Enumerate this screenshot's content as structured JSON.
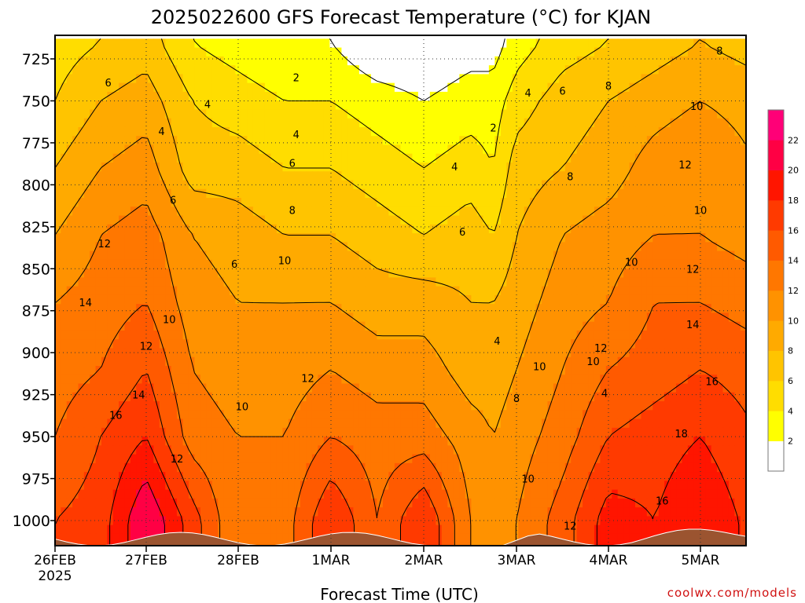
{
  "chart_data": {
    "type": "heatmap",
    "title": "2025022600 GFS Forecast Temperature (°C) for KJAN",
    "xlabel": "Forecast Time (UTC)",
    "ylabel": "",
    "credit": "coolwx.com/models",
    "x_ticks": [
      {
        "label": "26FEB",
        "sub": "2025",
        "t": 0
      },
      {
        "label": "27FEB",
        "sub": "",
        "t": 24
      },
      {
        "label": "28FEB",
        "sub": "",
        "t": 48
      },
      {
        "label": "1MAR",
        "sub": "",
        "t": 72
      },
      {
        "label": "2MAR",
        "sub": "",
        "t": 96
      },
      {
        "label": "3MAR",
        "sub": "",
        "t": 120
      },
      {
        "label": "4MAR",
        "sub": "",
        "t": 144
      },
      {
        "label": "5MAR",
        "sub": "",
        "t": 168
      }
    ],
    "xlim": [
      0,
      183
    ],
    "y_ticks": [
      725,
      750,
      775,
      800,
      825,
      850,
      875,
      900,
      925,
      950,
      975,
      1000
    ],
    "ylim_hpa": [
      713,
      1029
    ],
    "y_reversed": true,
    "colorbar": {
      "bins": [
        {
          "min": 0,
          "max": 2,
          "color": "#ffffff"
        },
        {
          "min": 2,
          "max": 4,
          "color": "#ffff00"
        },
        {
          "min": 4,
          "max": 6,
          "color": "#ffdd00"
        },
        {
          "min": 6,
          "max": 8,
          "color": "#ffc400"
        },
        {
          "min": 8,
          "max": 10,
          "color": "#ffaa00"
        },
        {
          "min": 10,
          "max": 12,
          "color": "#ff9200"
        },
        {
          "min": 12,
          "max": 14,
          "color": "#ff7700"
        },
        {
          "min": 14,
          "max": 16,
          "color": "#ff5a00"
        },
        {
          "min": 16,
          "max": 18,
          "color": "#ff3a00"
        },
        {
          "min": 18,
          "max": 20,
          "color": "#ff1500"
        },
        {
          "min": 20,
          "max": 22,
          "color": "#ff0044"
        },
        {
          "min": 22,
          "max": 24,
          "color": "#ff0077"
        }
      ],
      "tick_labels": [
        "2",
        "4",
        "6",
        "8",
        "10",
        "12",
        "14",
        "16",
        "18",
        "20",
        "22"
      ]
    },
    "surface_color": "#9b5430",
    "contour_interval": 2,
    "temperature_profiles": [
      {
        "t": 0,
        "p": [
          715,
          750,
          790,
          830,
          870,
          910,
          950,
          1000
        ],
        "T": [
          5,
          6,
          8,
          10,
          12,
          13,
          14,
          16
        ]
      },
      {
        "t": 12,
        "p": [
          715,
          750,
          790,
          830,
          870,
          910,
          950,
          1000
        ],
        "T": [
          6,
          8,
          10,
          12,
          13,
          14,
          16,
          17
        ]
      },
      {
        "t": 24,
        "p": [
          715,
          750,
          790,
          830,
          870,
          910,
          950,
          1000
        ],
        "T": [
          7,
          9,
          11,
          13,
          14,
          16,
          18,
          22
        ]
      },
      {
        "t": 36,
        "p": [
          715,
          750,
          790,
          830,
          870,
          910,
          950,
          1000
        ],
        "T": [
          4,
          6,
          7,
          10,
          11,
          12,
          13,
          17
        ]
      },
      {
        "t": 48,
        "p": [
          715,
          750,
          790,
          830,
          870,
          910,
          950,
          1000
        ],
        "T": [
          3,
          5,
          7,
          9,
          10,
          11,
          12,
          12
        ]
      },
      {
        "t": 60,
        "p": [
          715,
          750,
          790,
          830,
          870,
          910,
          950,
          1000
        ],
        "T": [
          2,
          4,
          6,
          8,
          10,
          11,
          12,
          13
        ]
      },
      {
        "t": 72,
        "p": [
          715,
          750,
          790,
          830,
          870,
          910,
          950,
          1000
        ],
        "T": [
          2,
          4,
          6,
          8,
          10,
          12,
          14,
          18
        ]
      },
      {
        "t": 84,
        "p": [
          715,
          750,
          790,
          830,
          870,
          910,
          950,
          1000
        ],
        "T": [
          0,
          3,
          5,
          7,
          9,
          11,
          13,
          14
        ]
      },
      {
        "t": 96,
        "p": [
          715,
          750,
          790,
          830,
          870,
          910,
          950,
          1000
        ],
        "T": [
          0,
          2,
          4,
          6,
          9,
          11,
          13,
          18
        ]
      },
      {
        "t": 108,
        "p": [
          715,
          750,
          790,
          830,
          870,
          910,
          950,
          1000
        ],
        "T": [
          1,
          3,
          5,
          7,
          8,
          9,
          11,
          12
        ]
      },
      {
        "t": 114,
        "p": [
          715,
          750,
          790,
          830,
          870,
          910,
          950,
          1000
        ],
        "T": [
          1,
          3,
          4,
          6,
          8,
          9,
          10,
          11
        ]
      },
      {
        "t": 120,
        "p": [
          715,
          750,
          790,
          830,
          870,
          910,
          950,
          1000
        ],
        "T": [
          3,
          5,
          7,
          8,
          9,
          10,
          11,
          12
        ]
      },
      {
        "t": 132,
        "p": [
          715,
          750,
          790,
          830,
          870,
          910,
          950,
          1000
        ],
        "T": [
          5,
          7,
          8,
          10,
          11,
          12,
          13,
          15
        ]
      },
      {
        "t": 144,
        "p": [
          715,
          750,
          790,
          830,
          870,
          910,
          950,
          1000
        ],
        "T": [
          6,
          8,
          9,
          11,
          12,
          14,
          16,
          19
        ]
      },
      {
        "t": 156,
        "p": [
          715,
          750,
          790,
          830,
          870,
          910,
          950,
          1000
        ],
        "T": [
          7,
          9,
          11,
          12,
          14,
          15,
          17,
          18
        ]
      },
      {
        "t": 168,
        "p": [
          715,
          750,
          790,
          830,
          870,
          910,
          950,
          1000
        ],
        "T": [
          8,
          10,
          12,
          12,
          14,
          16,
          18,
          20
        ]
      },
      {
        "t": 183,
        "p": [
          715,
          750,
          790,
          830,
          870,
          910,
          950,
          1000
        ],
        "T": [
          7,
          9,
          10,
          11,
          13,
          15,
          16,
          17
        ]
      }
    ],
    "contour_labels": [
      {
        "text": "2",
        "t": 63,
        "p": 736
      },
      {
        "text": "2",
        "t": 114,
        "p": 766
      },
      {
        "text": "4",
        "t": 28,
        "p": 768
      },
      {
        "text": "4",
        "t": 40,
        "p": 752
      },
      {
        "text": "4",
        "t": 63,
        "p": 770
      },
      {
        "text": "4",
        "t": 104,
        "p": 789
      },
      {
        "text": "4",
        "t": 123,
        "p": 745
      },
      {
        "text": "4",
        "t": 115,
        "p": 893
      },
      {
        "text": "4",
        "t": 143,
        "p": 924
      },
      {
        "text": "6",
        "t": 14,
        "p": 739
      },
      {
        "text": "6",
        "t": 31,
        "p": 809
      },
      {
        "text": "6",
        "t": 47,
        "p": 847
      },
      {
        "text": "6",
        "t": 62,
        "p": 787
      },
      {
        "text": "6",
        "t": 106,
        "p": 828
      },
      {
        "text": "6",
        "t": 132,
        "p": 744
      },
      {
        "text": "8",
        "t": 62,
        "p": 815
      },
      {
        "text": "8",
        "t": 120,
        "p": 927
      },
      {
        "text": "8",
        "t": 134,
        "p": 795
      },
      {
        "text": "8",
        "t": 144,
        "p": 741
      },
      {
        "text": "8",
        "t": 173,
        "p": 720
      },
      {
        "text": "10",
        "t": 30,
        "p": 880
      },
      {
        "text": "10",
        "t": 49,
        "p": 932
      },
      {
        "text": "10",
        "t": 60,
        "p": 845
      },
      {
        "text": "10",
        "t": 126,
        "p": 908
      },
      {
        "text": "10",
        "t": 140,
        "p": 905
      },
      {
        "text": "10",
        "t": 150,
        "p": 846
      },
      {
        "text": "10",
        "t": 123,
        "p": 975
      },
      {
        "text": "10",
        "t": 167,
        "p": 753
      },
      {
        "text": "10",
        "t": 168,
        "p": 815
      },
      {
        "text": "12",
        "t": 13,
        "p": 835
      },
      {
        "text": "12",
        "t": 24,
        "p": 896
      },
      {
        "text": "12",
        "t": 32,
        "p": 963
      },
      {
        "text": "12",
        "t": 66,
        "p": 915
      },
      {
        "text": "12",
        "t": 142,
        "p": 897
      },
      {
        "text": "12",
        "t": 134,
        "p": 1003
      },
      {
        "text": "12",
        "t": 164,
        "p": 788
      },
      {
        "text": "12",
        "t": 166,
        "p": 850
      },
      {
        "text": "14",
        "t": 8,
        "p": 870
      },
      {
        "text": "14",
        "t": 22,
        "p": 925
      },
      {
        "text": "14",
        "t": 166,
        "p": 883
      },
      {
        "text": "16",
        "t": 16,
        "p": 937
      },
      {
        "text": "16",
        "t": 171,
        "p": 917
      },
      {
        "text": "16",
        "t": 158,
        "p": 988
      },
      {
        "text": "18",
        "t": 163,
        "p": 948
      }
    ],
    "grid": true
  }
}
